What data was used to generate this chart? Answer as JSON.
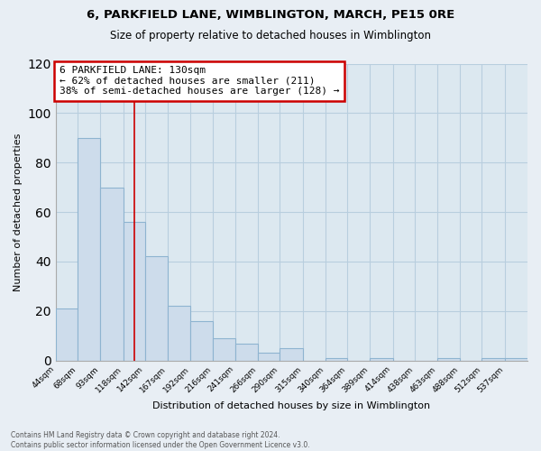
{
  "title": "6, PARKFIELD LANE, WIMBLINGTON, MARCH, PE15 0RE",
  "subtitle": "Size of property relative to detached houses in Wimblington",
  "xlabel": "Distribution of detached houses by size in Wimblington",
  "ylabel": "Number of detached properties",
  "footer_line1": "Contains HM Land Registry data © Crown copyright and database right 2024.",
  "footer_line2": "Contains public sector information licensed under the Open Government Licence v3.0.",
  "bar_labels": [
    "44sqm",
    "68sqm",
    "93sqm",
    "118sqm",
    "142sqm",
    "167sqm",
    "192sqm",
    "216sqm",
    "241sqm",
    "266sqm",
    "290sqm",
    "315sqm",
    "340sqm",
    "364sqm",
    "389sqm",
    "414sqm",
    "438sqm",
    "463sqm",
    "488sqm",
    "512sqm",
    "537sqm"
  ],
  "bar_values": [
    21,
    90,
    70,
    56,
    42,
    22,
    16,
    9,
    7,
    3,
    5,
    0,
    1,
    0,
    1,
    0,
    0,
    1,
    0,
    1,
    1
  ],
  "bar_color": "#cddceb",
  "bar_edge_color": "#8eb4d0",
  "annotation_text": "6 PARKFIELD LANE: 130sqm\n← 62% of detached houses are smaller (211)\n38% of semi-detached houses are larger (128) →",
  "annotation_box_color": "white",
  "annotation_box_edge_color": "#cc0000",
  "reference_line_x": 130,
  "reference_line_color": "#cc0000",
  "ylim": [
    0,
    120
  ],
  "yticks": [
    0,
    20,
    40,
    60,
    80,
    100,
    120
  ],
  "background_color": "#e8eef4",
  "plot_bg_color": "#dce8f0",
  "grid_color": "#b8cede"
}
